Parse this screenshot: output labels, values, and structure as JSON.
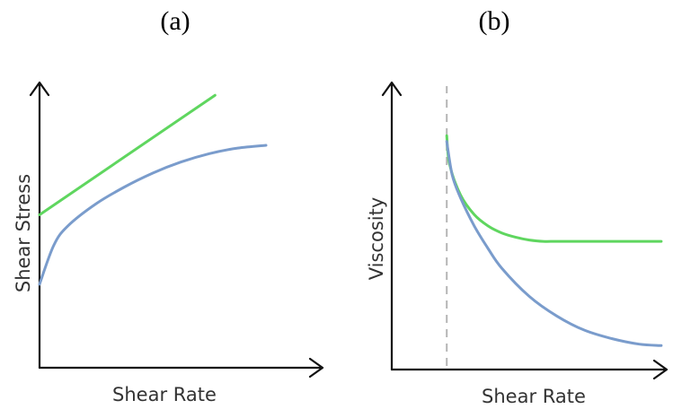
{
  "colors": {
    "green": "#5fd65f",
    "blue": "#7a9ccc",
    "axis": "#111111",
    "guide": "#b5b5b5"
  },
  "chart_data": [
    {
      "type": "line",
      "panel_label": "(a)",
      "xlabel": "Shear Rate",
      "ylabel": "Shear Stress",
      "xlim": [
        0,
        10
      ],
      "ylim": [
        0,
        10
      ],
      "ticks": false,
      "grid": false,
      "series": [
        {
          "color": "#5fd65f",
          "shape": "linear",
          "x": [
            0.0,
            6.2
          ],
          "y": [
            5.5,
            9.8
          ]
        },
        {
          "color": "#7a9ccc",
          "shape": "concave-increasing",
          "x": [
            0.0,
            0.5,
            1.0,
            2.0,
            3.0,
            4.0,
            5.0,
            6.0,
            7.0,
            8.0
          ],
          "y": [
            3.0,
            4.4,
            5.1,
            5.9,
            6.5,
            7.0,
            7.4,
            7.7,
            7.9,
            8.0
          ]
        }
      ]
    },
    {
      "type": "line",
      "panel_label": "(b)",
      "xlabel": "Shear Rate",
      "ylabel": "Viscosity",
      "xlim": [
        0,
        10
      ],
      "ylim": [
        0,
        10
      ],
      "ticks": false,
      "grid": false,
      "vline": {
        "x": 2.0,
        "style": "dashed"
      },
      "series": [
        {
          "color": "#5fd65f",
          "shape": "decay-to-plateau",
          "x": [
            2.0,
            2.1,
            2.5,
            3.0,
            3.5,
            4.0,
            4.5,
            5.0,
            5.5,
            6.0,
            7.0,
            8.0,
            9.0,
            9.8
          ],
          "y": [
            8.3,
            7.3,
            6.2,
            5.5,
            5.1,
            4.85,
            4.7,
            4.6,
            4.55,
            4.55,
            4.55,
            4.55,
            4.55,
            4.55
          ]
        },
        {
          "color": "#7a9ccc",
          "shape": "decay",
          "x": [
            2.0,
            2.2,
            2.5,
            3.0,
            3.5,
            4.0,
            5.0,
            6.0,
            7.0,
            8.0,
            9.0,
            9.8
          ],
          "y": [
            8.1,
            6.9,
            6.1,
            5.1,
            4.3,
            3.6,
            2.6,
            1.9,
            1.4,
            1.1,
            0.9,
            0.85
          ]
        }
      ]
    }
  ]
}
